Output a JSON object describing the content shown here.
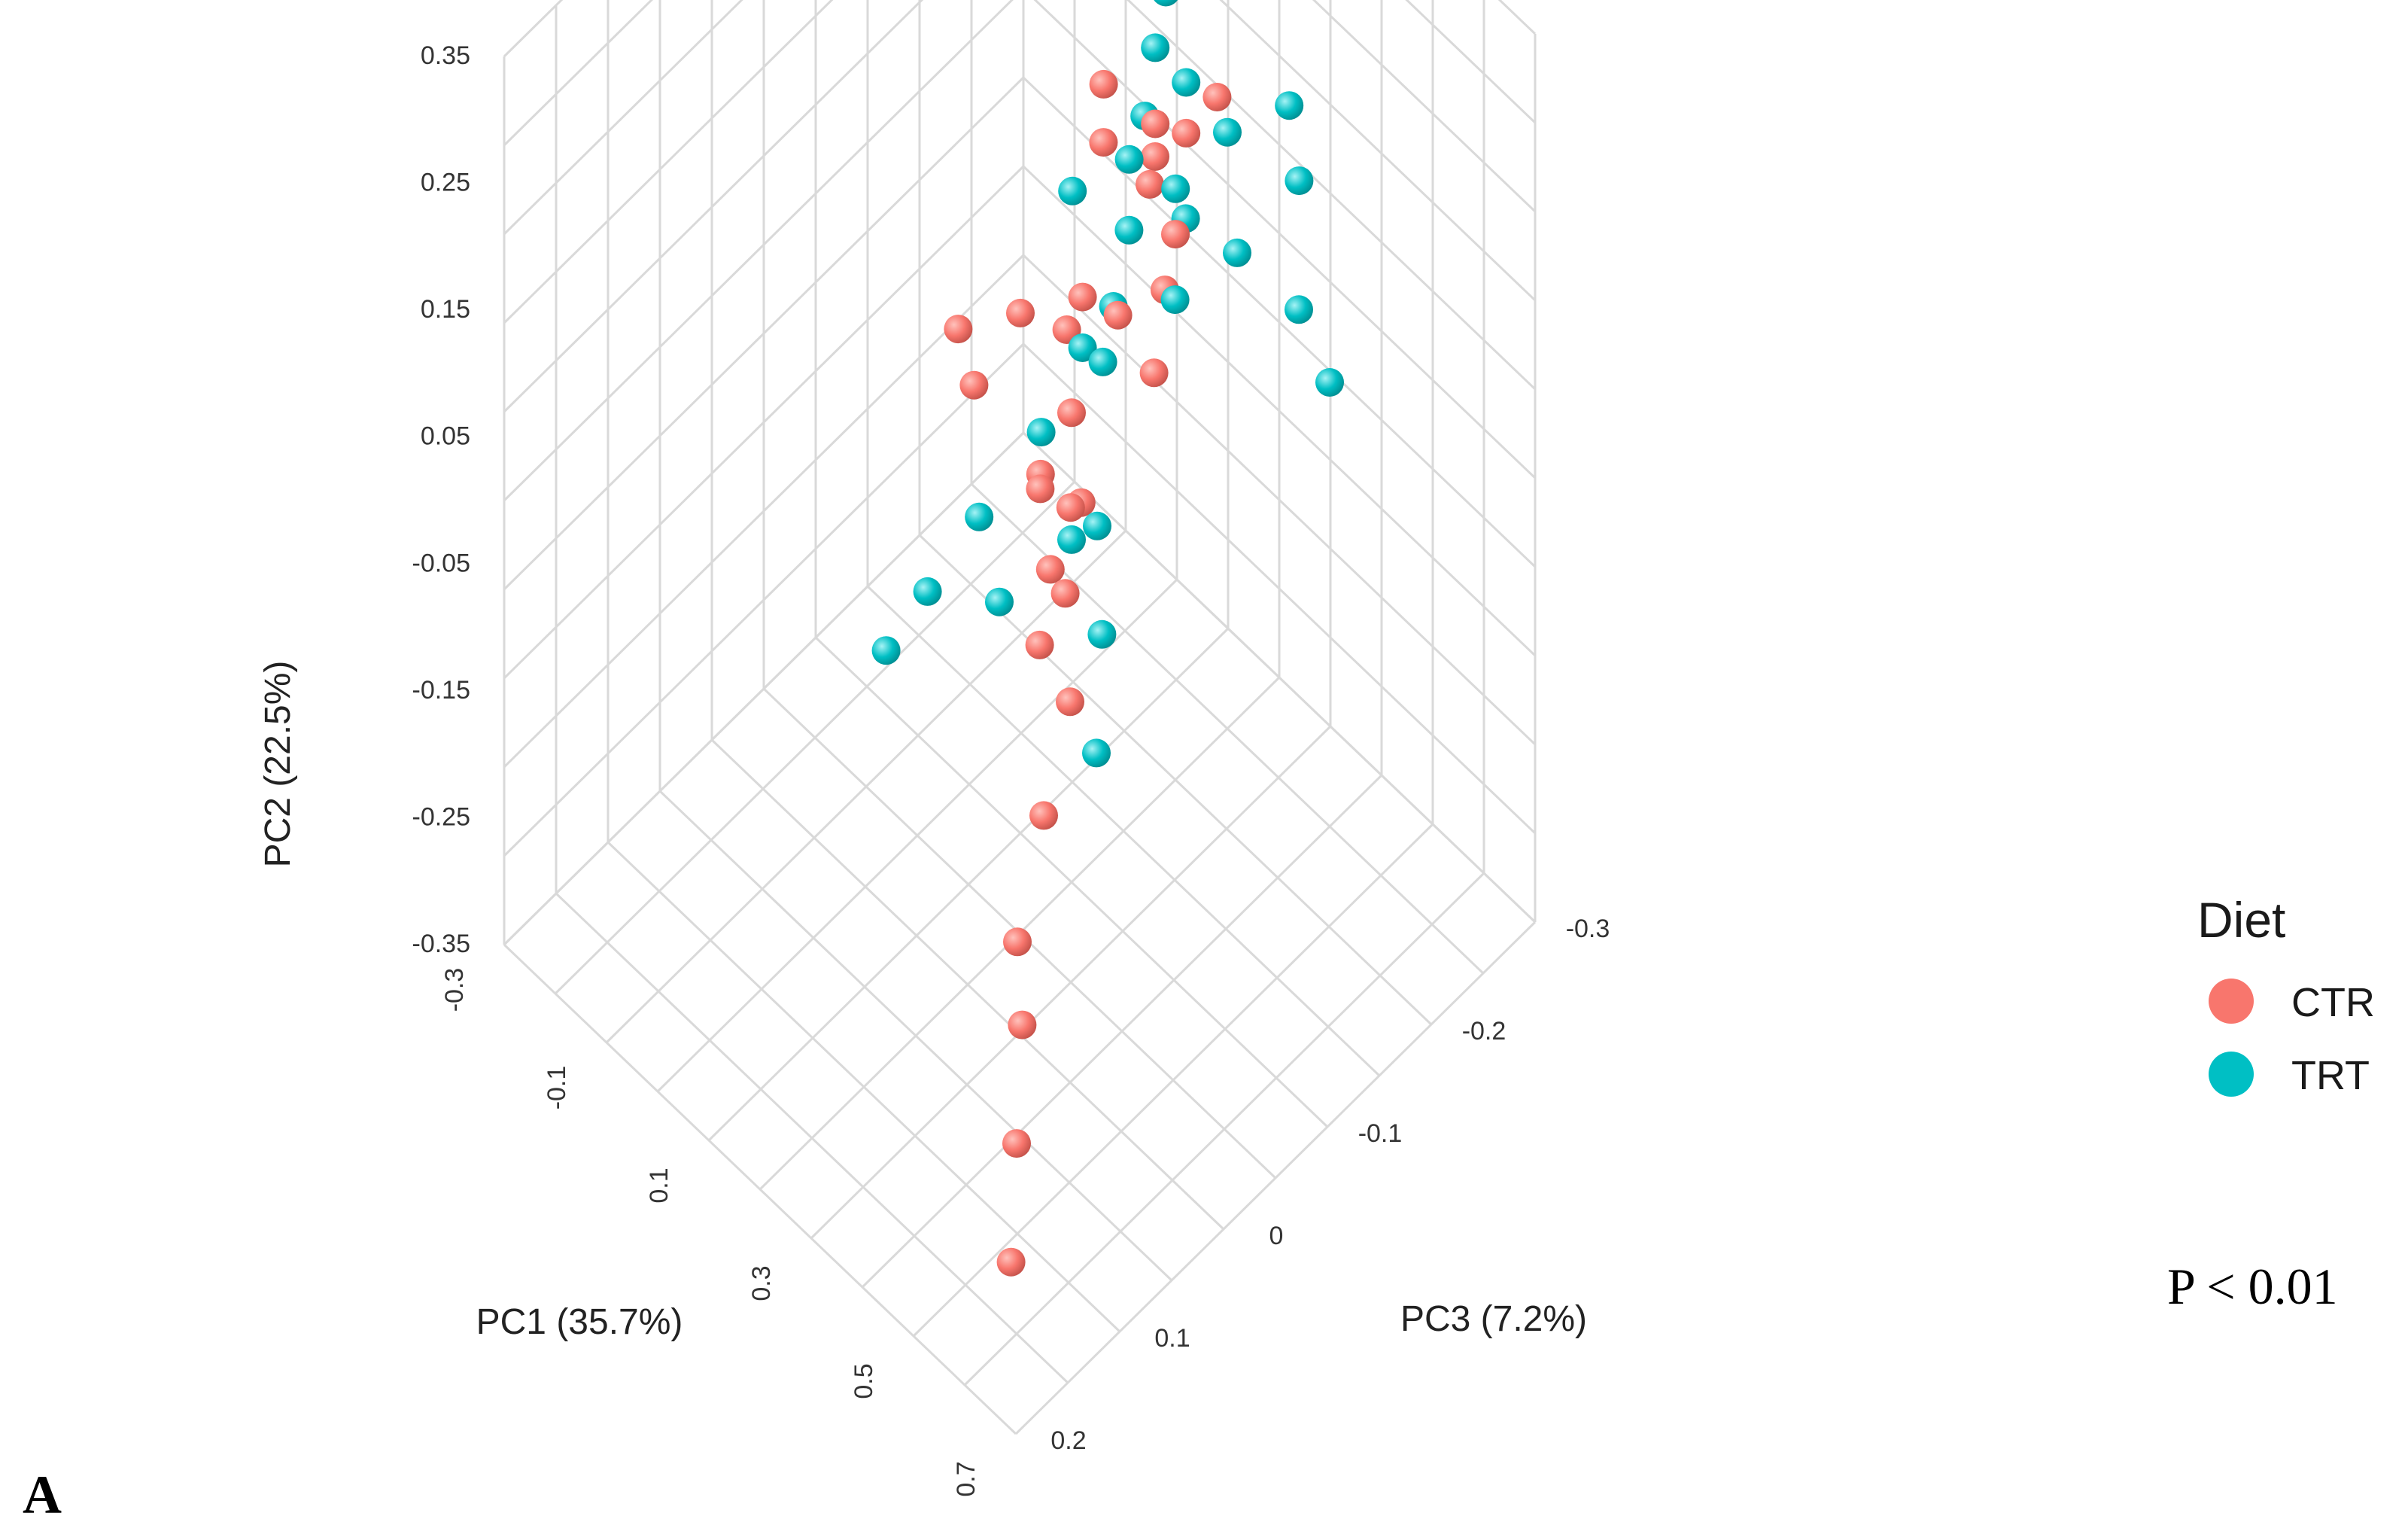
{
  "chart_data": {
    "type": "scatter",
    "title": "",
    "axes": {
      "pc1": {
        "label": "PC1 (35.7%)",
        "ticks": [
          "-0.3",
          "-0.1",
          "0.1",
          "0.3",
          "0.5",
          "0.7"
        ],
        "range": [
          -0.3,
          0.7
        ]
      },
      "pc2": {
        "label": "PC2 (22.5%)",
        "ticks": [
          "-0.35",
          "-0.25",
          "-0.15",
          "-0.05",
          "0.05",
          "0.15",
          "0.25",
          "0.35"
        ],
        "range": [
          -0.35,
          0.35
        ]
      },
      "pc3": {
        "label": "PC3 (7.2%)",
        "ticks": [
          "-0.3",
          "-0.2",
          "-0.1",
          "0",
          "0.1",
          "0.2"
        ],
        "range": [
          -0.3,
          0.2
        ]
      }
    },
    "grid": true,
    "legend": {
      "title": "Diet",
      "placement": "right",
      "entries": [
        {
          "name": "CTR",
          "color": "#F8766D"
        },
        {
          "name": "TRT",
          "color": "#00BFC4"
        }
      ]
    },
    "series": [
      {
        "name": "CTR",
        "color": "#F8766D",
        "points": [
          [
            0.12,
            0.12,
            -0.22
          ],
          [
            0.15,
            0.1,
            -0.2
          ],
          [
            0.1,
            0.13,
            -0.18
          ],
          [
            0.14,
            0.11,
            -0.21
          ],
          [
            0.18,
            0.14,
            -0.25
          ],
          [
            0.16,
            0.12,
            -0.23
          ],
          [
            0.08,
            0.16,
            -0.19
          ],
          [
            0.2,
            0.08,
            -0.2
          ],
          [
            0.22,
            0.06,
            -0.18
          ],
          [
            0.12,
            0.04,
            -0.15
          ],
          [
            0.25,
            0.1,
            -0.12
          ],
          [
            0.28,
            0.05,
            -0.14
          ],
          [
            0.1,
            0.06,
            -0.1
          ],
          [
            0.05,
            0.0,
            -0.08
          ],
          [
            0.3,
            0.02,
            -0.06
          ],
          [
            0.32,
            0.04,
            -0.04
          ],
          [
            0.35,
            0.0,
            -0.02
          ],
          [
            0.4,
            -0.05,
            0.0
          ],
          [
            0.45,
            -0.08,
            0.05
          ],
          [
            0.5,
            -0.12,
            0.1
          ],
          [
            0.55,
            -0.15,
            0.12
          ],
          [
            0.6,
            -0.2,
            0.15
          ],
          [
            0.65,
            -0.25,
            0.18
          ],
          [
            0.15,
            0.05,
            -0.12
          ],
          [
            0.2,
            0.02,
            -0.1
          ],
          [
            0.18,
            -0.02,
            -0.08
          ],
          [
            0.22,
            0.0,
            -0.06
          ],
          [
            0.26,
            -0.04,
            -0.05
          ],
          [
            0.08,
            0.08,
            -0.05
          ],
          [
            0.3,
            -0.06,
            -0.02
          ]
        ]
      },
      {
        "name": "TRT",
        "color": "#00BFC4",
        "points": [
          [
            0.1,
            0.2,
            -0.24
          ],
          [
            0.12,
            0.18,
            -0.22
          ],
          [
            0.14,
            0.15,
            -0.2
          ],
          [
            0.16,
            0.16,
            -0.23
          ],
          [
            0.13,
            0.12,
            -0.19
          ],
          [
            0.18,
            0.1,
            -0.21
          ],
          [
            0.2,
            0.12,
            -0.25
          ],
          [
            0.15,
            0.08,
            -0.18
          ],
          [
            0.22,
            0.1,
            -0.2
          ],
          [
            0.24,
            0.06,
            -0.18
          ],
          [
            0.12,
            0.0,
            -0.15
          ],
          [
            0.1,
            -0.05,
            -0.12
          ],
          [
            0.06,
            -0.1,
            -0.08
          ],
          [
            0.02,
            -0.15,
            -0.05
          ],
          [
            0.0,
            -0.18,
            -0.02
          ],
          [
            0.25,
            -0.05,
            -0.1
          ],
          [
            0.3,
            -0.1,
            -0.08
          ],
          [
            0.35,
            -0.15,
            -0.05
          ],
          [
            0.28,
            0.08,
            -0.22
          ],
          [
            0.32,
            0.12,
            -0.26
          ],
          [
            0.36,
            0.05,
            -0.24
          ],
          [
            0.4,
            0.0,
            -0.25
          ],
          [
            0.18,
            0.02,
            -0.14
          ],
          [
            0.2,
            -0.08,
            -0.1
          ],
          [
            0.14,
            -0.12,
            -0.06
          ],
          [
            0.26,
            0.14,
            -0.28
          ],
          [
            0.16,
            0.04,
            -0.16
          ],
          [
            0.08,
            0.1,
            -0.16
          ]
        ]
      }
    ],
    "annotation": "P < 0.01",
    "panel_label": "A"
  }
}
